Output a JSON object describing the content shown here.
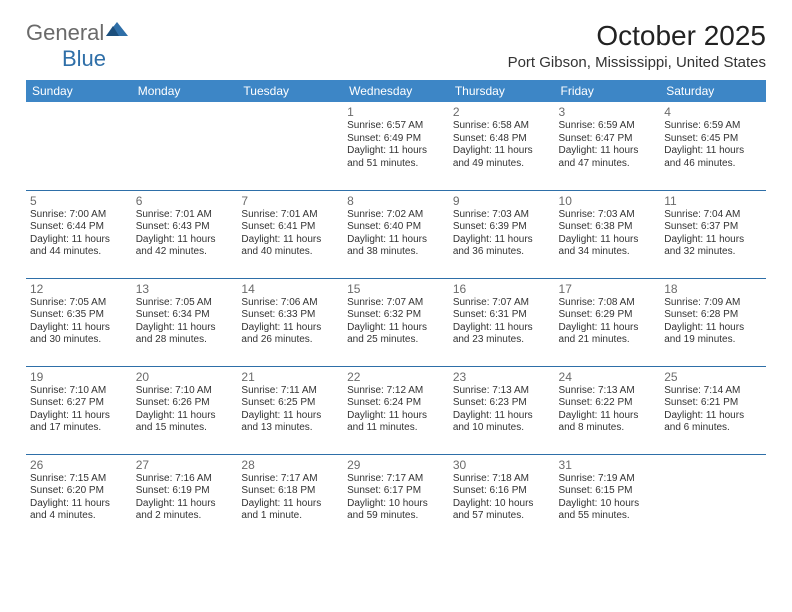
{
  "brand": {
    "name_a": "General",
    "name_b": "Blue"
  },
  "title": "October 2025",
  "location": "Port Gibson, Mississippi, United States",
  "colors": {
    "header_bg": "#3d86c6",
    "header_text": "#ffffff",
    "row_border": "#2e6fa8",
    "logo_gray": "#6a6a6a",
    "logo_blue": "#2f6fa8"
  },
  "weekdays": [
    "Sunday",
    "Monday",
    "Tuesday",
    "Wednesday",
    "Thursday",
    "Friday",
    "Saturday"
  ],
  "weeks": [
    [
      null,
      null,
      null,
      {
        "n": "1",
        "sr": "6:57 AM",
        "ss": "6:49 PM",
        "dl": "11 hours and 51 minutes."
      },
      {
        "n": "2",
        "sr": "6:58 AM",
        "ss": "6:48 PM",
        "dl": "11 hours and 49 minutes."
      },
      {
        "n": "3",
        "sr": "6:59 AM",
        "ss": "6:47 PM",
        "dl": "11 hours and 47 minutes."
      },
      {
        "n": "4",
        "sr": "6:59 AM",
        "ss": "6:45 PM",
        "dl": "11 hours and 46 minutes."
      }
    ],
    [
      {
        "n": "5",
        "sr": "7:00 AM",
        "ss": "6:44 PM",
        "dl": "11 hours and 44 minutes."
      },
      {
        "n": "6",
        "sr": "7:01 AM",
        "ss": "6:43 PM",
        "dl": "11 hours and 42 minutes."
      },
      {
        "n": "7",
        "sr": "7:01 AM",
        "ss": "6:41 PM",
        "dl": "11 hours and 40 minutes."
      },
      {
        "n": "8",
        "sr": "7:02 AM",
        "ss": "6:40 PM",
        "dl": "11 hours and 38 minutes."
      },
      {
        "n": "9",
        "sr": "7:03 AM",
        "ss": "6:39 PM",
        "dl": "11 hours and 36 minutes."
      },
      {
        "n": "10",
        "sr": "7:03 AM",
        "ss": "6:38 PM",
        "dl": "11 hours and 34 minutes."
      },
      {
        "n": "11",
        "sr": "7:04 AM",
        "ss": "6:37 PM",
        "dl": "11 hours and 32 minutes."
      }
    ],
    [
      {
        "n": "12",
        "sr": "7:05 AM",
        "ss": "6:35 PM",
        "dl": "11 hours and 30 minutes."
      },
      {
        "n": "13",
        "sr": "7:05 AM",
        "ss": "6:34 PM",
        "dl": "11 hours and 28 minutes."
      },
      {
        "n": "14",
        "sr": "7:06 AM",
        "ss": "6:33 PM",
        "dl": "11 hours and 26 minutes."
      },
      {
        "n": "15",
        "sr": "7:07 AM",
        "ss": "6:32 PM",
        "dl": "11 hours and 25 minutes."
      },
      {
        "n": "16",
        "sr": "7:07 AM",
        "ss": "6:31 PM",
        "dl": "11 hours and 23 minutes."
      },
      {
        "n": "17",
        "sr": "7:08 AM",
        "ss": "6:29 PM",
        "dl": "11 hours and 21 minutes."
      },
      {
        "n": "18",
        "sr": "7:09 AM",
        "ss": "6:28 PM",
        "dl": "11 hours and 19 minutes."
      }
    ],
    [
      {
        "n": "19",
        "sr": "7:10 AM",
        "ss": "6:27 PM",
        "dl": "11 hours and 17 minutes."
      },
      {
        "n": "20",
        "sr": "7:10 AM",
        "ss": "6:26 PM",
        "dl": "11 hours and 15 minutes."
      },
      {
        "n": "21",
        "sr": "7:11 AM",
        "ss": "6:25 PM",
        "dl": "11 hours and 13 minutes."
      },
      {
        "n": "22",
        "sr": "7:12 AM",
        "ss": "6:24 PM",
        "dl": "11 hours and 11 minutes."
      },
      {
        "n": "23",
        "sr": "7:13 AM",
        "ss": "6:23 PM",
        "dl": "11 hours and 10 minutes."
      },
      {
        "n": "24",
        "sr": "7:13 AM",
        "ss": "6:22 PM",
        "dl": "11 hours and 8 minutes."
      },
      {
        "n": "25",
        "sr": "7:14 AM",
        "ss": "6:21 PM",
        "dl": "11 hours and 6 minutes."
      }
    ],
    [
      {
        "n": "26",
        "sr": "7:15 AM",
        "ss": "6:20 PM",
        "dl": "11 hours and 4 minutes."
      },
      {
        "n": "27",
        "sr": "7:16 AM",
        "ss": "6:19 PM",
        "dl": "11 hours and 2 minutes."
      },
      {
        "n": "28",
        "sr": "7:17 AM",
        "ss": "6:18 PM",
        "dl": "11 hours and 1 minute."
      },
      {
        "n": "29",
        "sr": "7:17 AM",
        "ss": "6:17 PM",
        "dl": "10 hours and 59 minutes."
      },
      {
        "n": "30",
        "sr": "7:18 AM",
        "ss": "6:16 PM",
        "dl": "10 hours and 57 minutes."
      },
      {
        "n": "31",
        "sr": "7:19 AM",
        "ss": "6:15 PM",
        "dl": "10 hours and 55 minutes."
      },
      null
    ]
  ],
  "labels": {
    "sunrise": "Sunrise:",
    "sunset": "Sunset:",
    "daylight": "Daylight:"
  }
}
